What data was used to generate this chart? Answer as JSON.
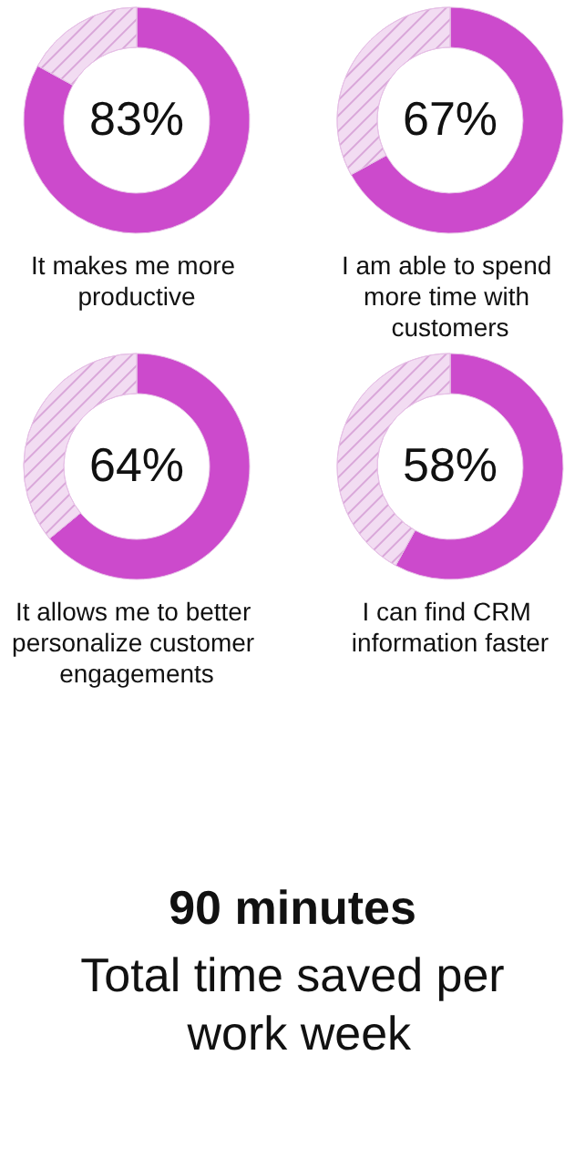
{
  "chart_data": [
    {
      "type": "donut",
      "title": "It makes me more productive",
      "categories": [
        null,
        null
      ],
      "values": [
        83,
        17
      ],
      "colors": [
        "#cc4acc",
        "#f2dcf2"
      ],
      "annotations": [
        "83%"
      ]
    },
    {
      "type": "donut",
      "title": "I am able to spend more time with customers",
      "categories": [
        null,
        null
      ],
      "values": [
        67,
        33
      ],
      "colors": [
        "#cc4acc",
        "#f2dcf2"
      ],
      "annotations": [
        "67%"
      ]
    },
    {
      "type": "donut",
      "title": "It allows me to better personalize customer engagements",
      "categories": [
        null,
        null
      ],
      "values": [
        64,
        36
      ],
      "colors": [
        "#cc4acc",
        "#f2dcf2"
      ],
      "annotations": [
        "64%"
      ]
    },
    {
      "type": "donut",
      "title": "I can find CRM information faster",
      "categories": [
        null,
        null
      ],
      "values": [
        58,
        42
      ],
      "colors": [
        "#cc4acc",
        "#f2dcf2"
      ],
      "annotations": [
        "58%"
      ]
    },
    {
      "type": "other",
      "title": "90 minutes",
      "subtitle": "Total time saved per work week"
    }
  ]
}
